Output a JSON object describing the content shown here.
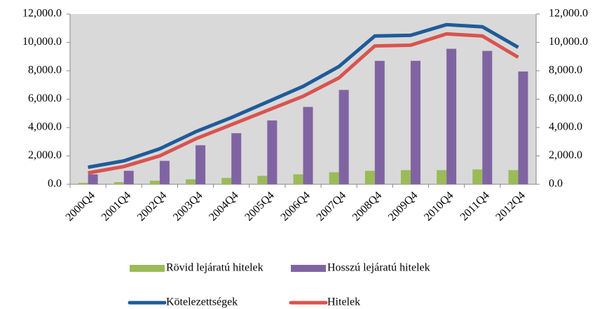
{
  "chart_data": {
    "type": "bar-line",
    "categories": [
      "2000Q4",
      "2001Q4",
      "2002Q4",
      "2003Q4",
      "2004Q4",
      "2005Q4",
      "2006Q4",
      "2007Q4",
      "2008Q4",
      "2009Q4",
      "2010Q4",
      "2011Q4",
      "2012Q4"
    ],
    "series": [
      {
        "name": "Rövid lejáratú hitelek",
        "type": "bar",
        "color": "#9bbb59",
        "values": [
          100,
          150,
          250,
          350,
          450,
          600,
          700,
          850,
          950,
          1000,
          1000,
          1050,
          1000
        ]
      },
      {
        "name": "Hosszú lejáratú hitelek",
        "type": "bar",
        "color": "#8064a2",
        "values": [
          700,
          950,
          1650,
          2750,
          3600,
          4500,
          5450,
          6650,
          8700,
          8700,
          9550,
          9400,
          7950
        ]
      },
      {
        "name": "Kötelezettségek",
        "type": "line",
        "axis": "y2",
        "color": "#1f5b99",
        "values": [
          1200,
          1650,
          2500,
          3700,
          4700,
          5800,
          6900,
          8300,
          10450,
          10500,
          11250,
          11100,
          9650
        ]
      },
      {
        "name": "Hitelek",
        "type": "line",
        "axis": "y2",
        "color": "#d9534f",
        "values": [
          800,
          1250,
          2000,
          3200,
          4200,
          5200,
          6200,
          7500,
          9750,
          9800,
          10600,
          10450,
          8950
        ]
      }
    ],
    "ylim": [
      0,
      12000
    ],
    "yticks": [
      {
        "value": 0,
        "label": "0.0"
      },
      {
        "value": 2000,
        "label": "2,000.0"
      },
      {
        "value": 4000,
        "label": "4,000.0"
      },
      {
        "value": 6000,
        "label": "6,000.0"
      },
      {
        "value": 8000,
        "label": "8,000.0"
      },
      {
        "value": 10000,
        "label": "10,000.0"
      },
      {
        "value": 12000,
        "label": "12,000.0"
      }
    ],
    "y2lim": [
      0,
      12000
    ],
    "y2ticks": [
      {
        "value": 0,
        "label": "0.0"
      },
      {
        "value": 2000,
        "label": "2,000.0"
      },
      {
        "value": 4000,
        "label": "4,000.0"
      },
      {
        "value": 6000,
        "label": "6,000.0"
      },
      {
        "value": 8000,
        "label": "8,000.0"
      },
      {
        "value": 10000,
        "label": "10,000.0"
      },
      {
        "value": 12000,
        "label": "12,000.0"
      }
    ],
    "plot_background": "#d9d9d9"
  }
}
